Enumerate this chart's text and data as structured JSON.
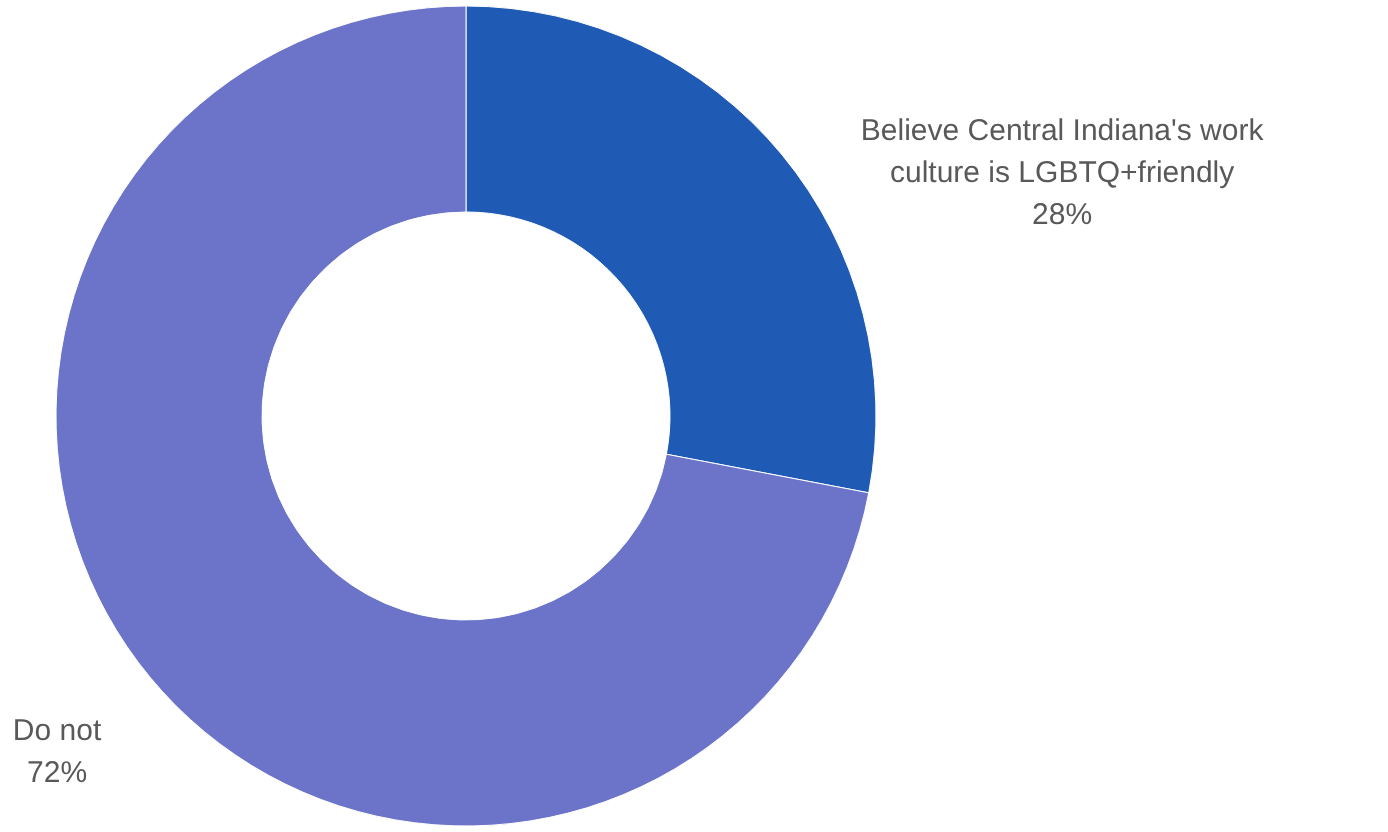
{
  "chart_data": {
    "type": "donut",
    "categories": [
      "Believe Central Indiana's work culture is LGBTQ+friendly",
      "Do not"
    ],
    "values": [
      28,
      72
    ],
    "colors": [
      "#1f5bb5",
      "#6b74c9"
    ],
    "value_labels": [
      "28%",
      "72%"
    ]
  }
}
